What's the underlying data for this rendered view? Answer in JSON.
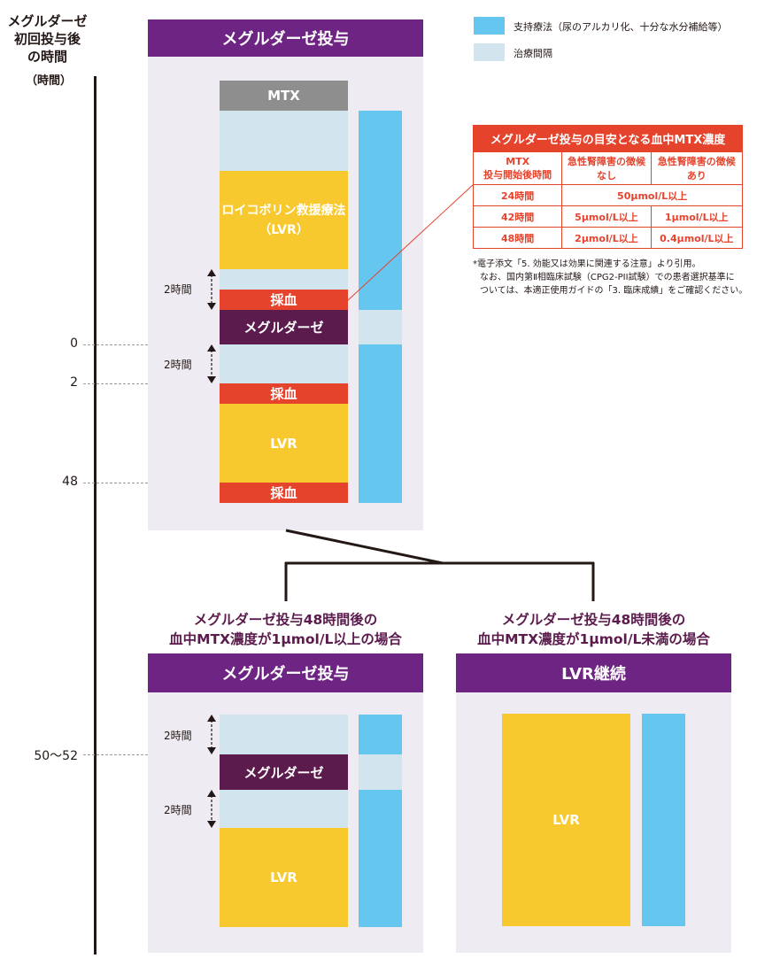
{
  "axis": {
    "title_lines": [
      "メグルダーゼ",
      "初回投与後",
      "の時間"
    ],
    "unit": "（時間）",
    "ticks": [
      "0",
      "2",
      "48",
      "50〜52"
    ]
  },
  "legend": [
    {
      "label": "支持療法（尿のアルカリ化、十分な水分補給等）",
      "color": "#65c6f0"
    },
    {
      "label": "治療間隔",
      "color": "#d2e5ee"
    }
  ],
  "top_panel": {
    "title": "メグルダーゼ投与",
    "blocks": {
      "mtx": "MTX",
      "lvr_rescue_line1": "ロイコボリン救援療法",
      "lvr_rescue_line2": "（LVR）",
      "blood1": "採血",
      "glucarpidase": "メグルダーゼ",
      "blood2": "採血",
      "lvr": "LVR",
      "blood3": "採血"
    },
    "interval1": "2時間",
    "interval2": "2時間"
  },
  "conc_table": {
    "title": "メグルダーゼ投与の目安となる血中MTX濃度",
    "head": [
      "MTX\n投与開始後時間",
      "急性腎障害の徴候\nなし",
      "急性腎障害の徴候\nあり"
    ],
    "rows": [
      {
        "time": "24時間",
        "merged": "50μmol/L以上"
      },
      {
        "time": "42時間",
        "no": "5μmol/L以上",
        "yes": "1μmol/L以上"
      },
      {
        "time": "48時間",
        "no": "2μmol/L以上",
        "yes": "0.4μmol/L以上"
      }
    ]
  },
  "notes": [
    "*電子添文「5. 効能又は効果に関連する注意」より引用。",
    "なお、国内第Ⅱ相臨床試験（CPG2-PII試験）での患者選択基準に",
    "ついては、本適正使用ガイドの「3. 臨床成績」をご確認ください。"
  ],
  "left_branch": {
    "cond_line1": "メグルダーゼ投与48時間後の",
    "cond_line2": "血中MTX濃度が1μmol/L以上の場合",
    "title": "メグルダーゼ投与",
    "interval1": "2時間",
    "interval2": "2時間",
    "glucarpidase": "メグルダーゼ",
    "lvr": "LVR"
  },
  "right_branch": {
    "cond_line1": "メグルダーゼ投与48時間後の",
    "cond_line2": "血中MTX濃度が1μmol/L未満の場合",
    "title": "LVR継続",
    "lvr": "LVR"
  }
}
